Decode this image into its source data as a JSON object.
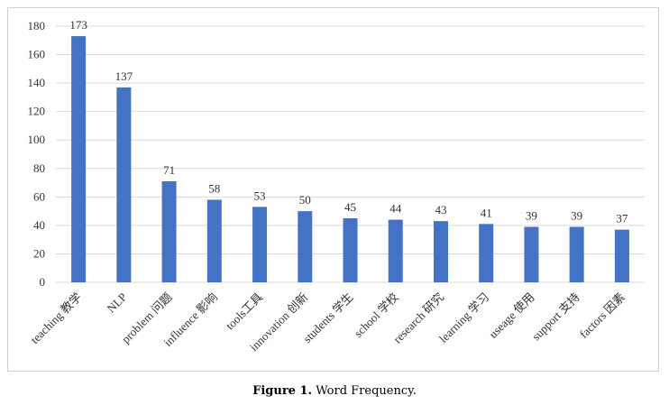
{
  "chart_data": {
    "type": "bar",
    "categories": [
      "teaching 教学",
      "NLP",
      "problem 问题",
      "influence 影响",
      "tools工具",
      "innovation 创新",
      "students 学生",
      "school 学校",
      "research 研究",
      "learning 学习",
      "useage 使用",
      "support 支持",
      "factors 因素"
    ],
    "values": [
      173,
      137,
      71,
      58,
      53,
      50,
      45,
      44,
      43,
      41,
      39,
      39,
      37
    ],
    "color": "#4472c4",
    "ylim": [
      0,
      180
    ],
    "yticks": [
      0,
      20,
      40,
      60,
      80,
      100,
      120,
      140,
      160,
      180
    ],
    "grid": true
  },
  "caption": {
    "label": "Figure 1.",
    "text": "Word Frequency."
  }
}
